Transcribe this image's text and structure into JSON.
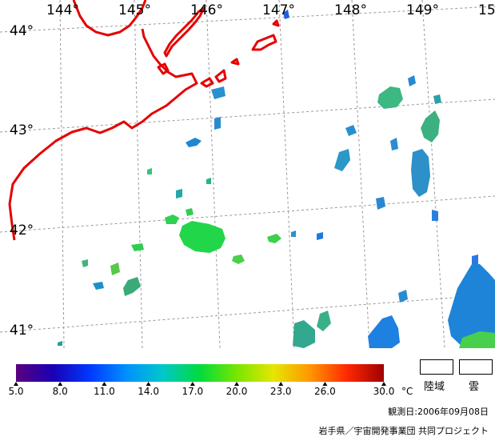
{
  "map": {
    "longitude_labels": [
      "144°",
      "145°",
      "146°",
      "147°",
      "148°",
      "149°",
      "15"
    ],
    "latitude_labels": [
      "44°",
      "43°",
      "42°",
      "41°"
    ]
  },
  "legend": {
    "ticks": [
      "5.0",
      "8.0",
      "11.0",
      "14.0",
      "17.0",
      "20.0",
      "23.0",
      "26.0",
      "30.0"
    ],
    "unit": "°C",
    "scale_min": 5.0,
    "scale_max": 30.0,
    "colors": [
      "#5a007f",
      "#1a00b4",
      "#0038ff",
      "#0090ff",
      "#00c8c8",
      "#00dc3c",
      "#78e600",
      "#e6e600",
      "#ff9600",
      "#ff2800",
      "#a00000"
    ],
    "land_label": "陸域",
    "cloud_label": "雲"
  },
  "footer": {
    "date": "観測日:2006年09月08日",
    "credit": "岩手県／宇宙開発事業団 共同プロジェクト"
  }
}
